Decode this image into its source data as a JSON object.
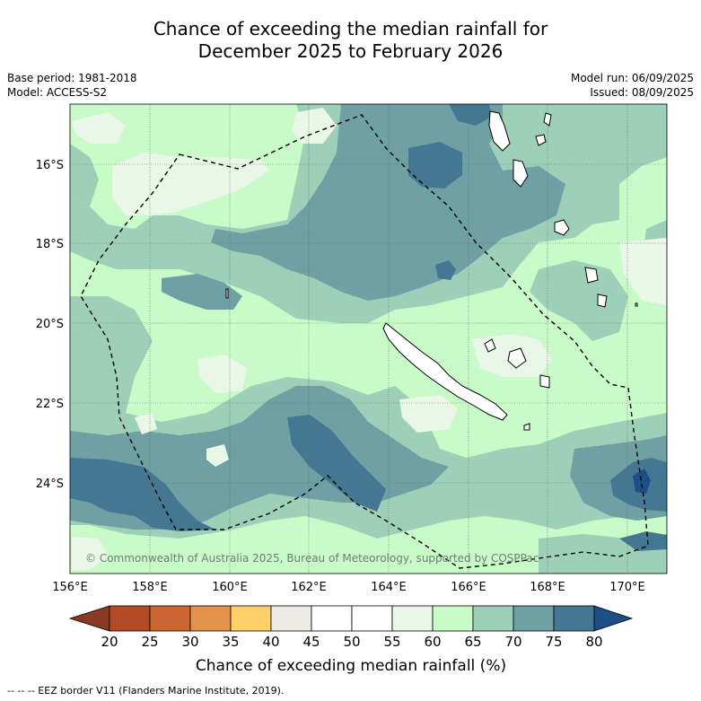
{
  "title": {
    "line1": "Chance of exceeding the median rainfall for",
    "line2": "December 2025 to February 2026"
  },
  "meta": {
    "base_period": "Base period: 1981-2018",
    "model": "Model: ACCESS-S2",
    "model_run": "Model run: 06/09/2025",
    "issued": "Issued: 08/09/2025"
  },
  "map": {
    "copyright": "© Commonwealth of Australia 2025, Bureau of Meteorology, supported by COSPPac",
    "lat_labels": [
      "16°S",
      "18°S",
      "20°S",
      "22°S",
      "24°S"
    ],
    "lon_labels": [
      "156°E",
      "158°E",
      "160°E",
      "162°E",
      "164°E",
      "166°E",
      "168°E",
      "170°E"
    ]
  },
  "legend": {
    "title": "Chance of exceeding median rainfall (%)",
    "ticks": [
      "20",
      "25",
      "30",
      "35",
      "40",
      "45",
      "50",
      "55",
      "60",
      "65",
      "70",
      "75",
      "80"
    ],
    "colors": {
      "lt20": "#8b3a22",
      "20-25": "#b34a26",
      "25-30": "#cc6633",
      "30-35": "#e3944a",
      "35-40": "#fdd06a",
      "40-45": "#ecebe6",
      "45-50": "#ffffff",
      "50-55": "#ffffff",
      "55-60": "#eaf6e7",
      "60-65": "#c8fbc8",
      "65-70": "#9ecfb8",
      "70-75": "#6ea0a4",
      "75-80": "#447892",
      "gt80": "#1d4f86"
    }
  },
  "footnote": "--  --  -- EEZ border V11 (Flanders Marine Institute, 2019)."
}
